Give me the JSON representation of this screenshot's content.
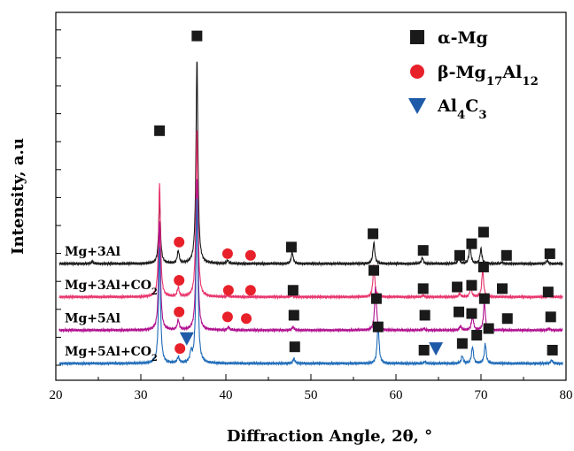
{
  "chart_data": {
    "type": "line",
    "xlabel": "Diffraction Angle, 2θ, °",
    "ylabel": "Intensity, a.u",
    "xlim": [
      20,
      80
    ],
    "xticks": [
      20,
      30,
      40,
      50,
      60,
      70,
      80
    ],
    "grid": false,
    "legend_placement": "top-right",
    "legend": [
      {
        "phase": "alpha",
        "label": "α-Mg",
        "marker": "square",
        "color": "#1a1a1a"
      },
      {
        "phase": "beta",
        "label": "β-Mg17Al12",
        "label_parts": [
          "β-Mg",
          "17",
          "Al",
          "12"
        ],
        "marker": "circle",
        "color": "#e8202a"
      },
      {
        "phase": "carbide",
        "label": "Al4C3",
        "label_parts": [
          "Al",
          "4",
          "C",
          "3"
        ],
        "marker": "triangle-down",
        "color": "#1e5aa8"
      }
    ],
    "series": [
      {
        "name": "Mg+3Al",
        "label_parts": [
          "Mg+3Al"
        ],
        "color": "#1a1a1a",
        "baseline": 3.0,
        "peaks": [
          [
            24.3,
            0.06
          ],
          [
            32.2,
            1.85
          ],
          [
            34.4,
            0.38
          ],
          [
            36.6,
            6.2
          ],
          [
            40.2,
            0.1
          ],
          [
            47.8,
            0.35
          ],
          [
            57.4,
            0.65
          ],
          [
            63.1,
            0.18
          ],
          [
            67.4,
            0.2
          ],
          [
            68.7,
            0.55
          ],
          [
            70.0,
            0.45
          ],
          [
            72.5,
            0.04
          ],
          [
            77.8,
            0.1
          ]
        ],
        "markers": [
          {
            "phase": "alpha",
            "x": 32.2,
            "y": 7.0
          },
          {
            "phase": "alpha",
            "x": 36.6,
            "y": 9.85
          },
          {
            "phase": "beta",
            "x": 34.5,
            "y": 3.65
          },
          {
            "phase": "beta",
            "x": 40.2,
            "y": 3.3
          },
          {
            "phase": "beta",
            "x": 42.9,
            "y": 3.25
          },
          {
            "phase": "alpha",
            "x": 47.7,
            "y": 3.5
          },
          {
            "phase": "alpha",
            "x": 57.3,
            "y": 3.9
          },
          {
            "phase": "alpha",
            "x": 63.2,
            "y": 3.4
          },
          {
            "phase": "alpha",
            "x": 67.5,
            "y": 3.25
          },
          {
            "phase": "alpha",
            "x": 68.9,
            "y": 3.6
          },
          {
            "phase": "alpha",
            "x": 70.3,
            "y": 3.95
          },
          {
            "phase": "alpha",
            "x": 73.0,
            "y": 3.25
          },
          {
            "phase": "alpha",
            "x": 78.1,
            "y": 3.3
          }
        ]
      },
      {
        "name": "Mg+3Al+CO2",
        "label_parts": [
          "Mg+3Al+CO",
          "2"
        ],
        "color": "#e8336b",
        "baseline": 2.0,
        "peaks": [
          [
            32.2,
            3.4
          ],
          [
            34.4,
            0.28
          ],
          [
            36.6,
            5.1
          ],
          [
            40.2,
            0.05
          ],
          [
            47.8,
            0.05
          ],
          [
            57.4,
            0.95
          ],
          [
            63.2,
            0.05
          ],
          [
            67.5,
            0.1
          ],
          [
            68.8,
            0.3
          ],
          [
            70.2,
            0.8
          ],
          [
            78.0,
            0.05
          ]
        ],
        "markers": [
          {
            "phase": "beta",
            "x": 34.5,
            "y": 2.5
          },
          {
            "phase": "beta",
            "x": 40.3,
            "y": 2.2
          },
          {
            "phase": "beta",
            "x": 42.9,
            "y": 2.2
          },
          {
            "phase": "alpha",
            "x": 47.9,
            "y": 2.2
          },
          {
            "phase": "alpha",
            "x": 57.4,
            "y": 2.8
          },
          {
            "phase": "alpha",
            "x": 63.2,
            "y": 2.25
          },
          {
            "phase": "alpha",
            "x": 67.2,
            "y": 2.3
          },
          {
            "phase": "alpha",
            "x": 68.9,
            "y": 2.35
          },
          {
            "phase": "alpha",
            "x": 70.3,
            "y": 2.9
          },
          {
            "phase": "alpha",
            "x": 72.5,
            "y": 2.25
          },
          {
            "phase": "alpha",
            "x": 77.9,
            "y": 2.15
          }
        ]
      },
      {
        "name": "Mg+5Al",
        "label_parts": [
          "Mg+5Al"
        ],
        "color": "#b0108e",
        "baseline": 1.0,
        "peaks": [
          [
            32.2,
            3.3
          ],
          [
            34.4,
            0.3
          ],
          [
            36.6,
            4.6
          ],
          [
            40.3,
            0.1
          ],
          [
            47.9,
            0.1
          ],
          [
            57.6,
            1.3
          ],
          [
            63.3,
            0.05
          ],
          [
            67.6,
            0.12
          ],
          [
            69.0,
            0.45
          ],
          [
            70.4,
            0.85
          ],
          [
            78.0,
            0.05
          ]
        ],
        "markers": [
          {
            "phase": "beta",
            "x": 34.5,
            "y": 1.55
          },
          {
            "phase": "beta",
            "x": 40.2,
            "y": 1.4
          },
          {
            "phase": "beta",
            "x": 42.4,
            "y": 1.35
          },
          {
            "phase": "alpha",
            "x": 48.0,
            "y": 1.45
          },
          {
            "phase": "alpha",
            "x": 57.7,
            "y": 1.95
          },
          {
            "phase": "alpha",
            "x": 63.4,
            "y": 1.45
          },
          {
            "phase": "alpha",
            "x": 67.4,
            "y": 1.55
          },
          {
            "phase": "alpha",
            "x": 68.9,
            "y": 1.5
          },
          {
            "phase": "alpha",
            "x": 70.4,
            "y": 1.95
          },
          {
            "phase": "alpha",
            "x": 73.1,
            "y": 1.35
          },
          {
            "phase": "alpha",
            "x": 78.2,
            "y": 1.4
          }
        ]
      },
      {
        "name": "Mg+5Al+CO2",
        "label_parts": [
          "Mg+5Al+CO",
          "2"
        ],
        "color": "#1e6bb8",
        "baseline": 0.0,
        "peaks": [
          [
            32.2,
            3.5
          ],
          [
            34.4,
            0.18
          ],
          [
            35.9,
            0.3
          ],
          [
            36.6,
            5.05
          ],
          [
            48.0,
            0.15
          ],
          [
            57.9,
            1.2
          ],
          [
            63.4,
            0.05
          ],
          [
            67.8,
            0.22
          ],
          [
            69.0,
            0.5
          ],
          [
            70.5,
            0.6
          ],
          [
            78.3,
            0.1
          ]
        ],
        "markers": [
          {
            "phase": "beta",
            "x": 34.6,
            "y": 0.45
          },
          {
            "phase": "carbide",
            "x": 35.4,
            "y": 0.75
          },
          {
            "phase": "alpha",
            "x": 48.1,
            "y": 0.5
          },
          {
            "phase": "alpha",
            "x": 57.9,
            "y": 1.1
          },
          {
            "phase": "alpha",
            "x": 63.3,
            "y": 0.4
          },
          {
            "phase": "carbide",
            "x": 64.7,
            "y": 0.45
          },
          {
            "phase": "alpha",
            "x": 67.8,
            "y": 0.6
          },
          {
            "phase": "alpha",
            "x": 69.5,
            "y": 0.85
          },
          {
            "phase": "alpha",
            "x": 70.9,
            "y": 1.05
          },
          {
            "phase": "alpha",
            "x": 78.4,
            "y": 0.4
          }
        ]
      }
    ]
  }
}
